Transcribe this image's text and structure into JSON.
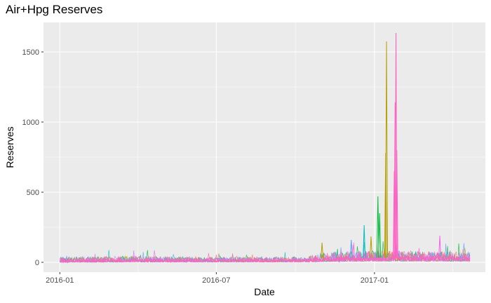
{
  "chart_data": {
    "type": "line",
    "title": "Air+Hpg Reserves",
    "xlabel": "Date",
    "ylabel": "Reserves",
    "x_range": [
      "2015-12-13",
      "2017-05-10"
    ],
    "ylim": [
      -70,
      1710
    ],
    "x_ticks": [
      {
        "date": "2016-01-01",
        "label": "2016-01"
      },
      {
        "date": "2016-07-01",
        "label": "2016-07"
      },
      {
        "date": "2017-01-01",
        "label": "2017-01"
      }
    ],
    "y_ticks": [
      0,
      500,
      1000,
      1500
    ],
    "grid": true,
    "background": "#ebebeb",
    "grid_color": "#ffffff",
    "legend": "none",
    "series_colors": [
      "#00ba38",
      "#b79f00",
      "#00bfc4",
      "#619cff",
      "#f564e3",
      "#c77cff",
      "#f8766d",
      "#ff61c3"
    ],
    "series_note": "hundreds of overlapping series; typical daily range shown as band",
    "band": [
      {
        "x": "2016-01-01",
        "low": 0,
        "high": 40
      },
      {
        "x": "2016-04-01",
        "low": 2,
        "high": 45
      },
      {
        "x": "2016-07-01",
        "low": 2,
        "high": 38
      },
      {
        "x": "2016-10-15",
        "low": 2,
        "high": 40
      },
      {
        "x": "2016-11-01",
        "low": 5,
        "high": 70
      },
      {
        "x": "2017-01-01",
        "low": 8,
        "high": 85
      },
      {
        "x": "2017-03-01",
        "low": 8,
        "high": 80
      },
      {
        "x": "2017-04-22",
        "low": 8,
        "high": 75
      }
    ],
    "spikes": [
      {
        "x": "2016-11-01",
        "y": 140,
        "color": "#b79f00"
      },
      {
        "x": "2016-12-05",
        "y": 160,
        "color": "#619cff"
      },
      {
        "x": "2016-12-20",
        "y": 265,
        "color": "#00bfc4"
      },
      {
        "x": "2016-12-28",
        "y": 185,
        "color": "#b79f00"
      },
      {
        "x": "2017-01-05",
        "y": 470,
        "color": "#00ba38"
      },
      {
        "x": "2017-01-07",
        "y": 350,
        "color": "#00ba38"
      },
      {
        "x": "2017-01-14",
        "y": 780,
        "color": "#b79f00"
      },
      {
        "x": "2017-01-15",
        "y": 1575,
        "color": "#b79f00"
      },
      {
        "x": "2017-01-24",
        "y": 650,
        "color": "#ff61c3"
      },
      {
        "x": "2017-01-25",
        "y": 1140,
        "color": "#ff61c3"
      },
      {
        "x": "2017-01-26",
        "y": 1635,
        "color": "#ff61c3"
      },
      {
        "x": "2017-01-27",
        "y": 800,
        "color": "#ff61c3"
      },
      {
        "x": "2017-03-18",
        "y": 190,
        "color": "#f564e3"
      }
    ]
  }
}
